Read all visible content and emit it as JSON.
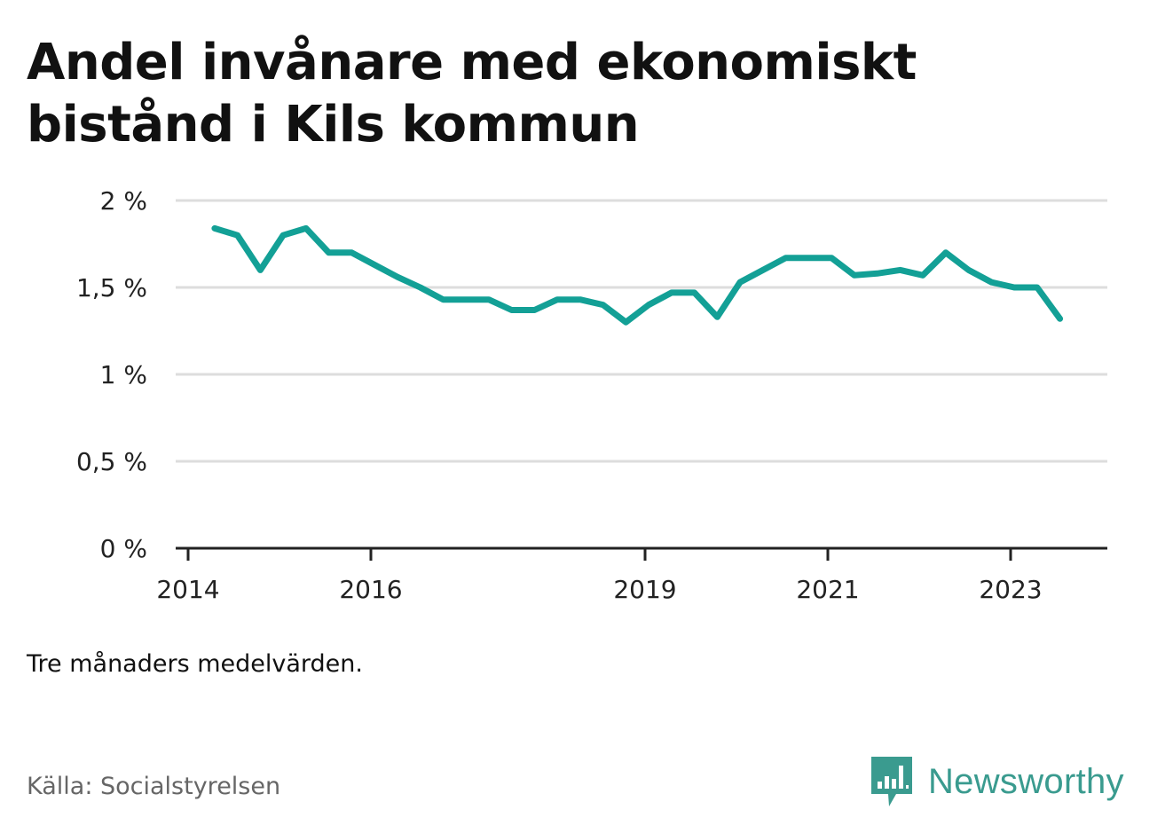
{
  "title_lines": [
    "Andel invånare med ekonomiskt",
    "bistånd i Kils kommun"
  ],
  "note": "Tre månaders medelvärden.",
  "source": "Källa: Socialstyrelsen",
  "brand": {
    "name": "Newsworthy",
    "icon": "newsworthy-logo-icon",
    "color": "#3a9b8f"
  },
  "colors": {
    "line": "#13a096",
    "grid": "#dddddd",
    "axis": "#222222"
  },
  "chart_data": {
    "type": "line",
    "title": "Andel invånare med ekonomiskt bistånd i Kils kommun",
    "xlabel": "",
    "ylabel": "",
    "ylim": [
      0,
      2
    ],
    "yticks": [
      0,
      0.5,
      1,
      1.5,
      2
    ],
    "ytick_labels": [
      "0 %",
      "0,5 %",
      "1 %",
      "1,5 %",
      "2 %"
    ],
    "xticks": [
      2014,
      2016,
      2019,
      2021,
      2023
    ],
    "xtick_labels": [
      "2014",
      "2016",
      "2019",
      "2021",
      "2023"
    ],
    "grid": true,
    "legend": "none",
    "series": [
      {
        "x": [
          2014.29,
          2014.54,
          2014.79,
          2015.04,
          2015.29,
          2015.54,
          2015.79,
          2016.04,
          2016.29,
          2016.54,
          2016.79,
          2017.04,
          2017.29,
          2017.54,
          2017.79,
          2018.04,
          2018.29,
          2018.54,
          2018.79,
          2019.04,
          2019.29,
          2019.54,
          2019.79,
          2020.04,
          2020.29,
          2020.54,
          2020.79,
          2021.04,
          2021.29,
          2021.54,
          2021.79,
          2022.04,
          2022.29,
          2022.54,
          2022.79,
          2023.04,
          2023.29,
          2023.54
        ],
        "values": [
          1.84,
          1.8,
          1.6,
          1.8,
          1.84,
          1.7,
          1.7,
          1.63,
          1.56,
          1.5,
          1.43,
          1.43,
          1.43,
          1.37,
          1.37,
          1.43,
          1.43,
          1.4,
          1.3,
          1.4,
          1.47,
          1.47,
          1.33,
          1.53,
          1.6,
          1.67,
          1.67,
          1.67,
          1.57,
          1.58,
          1.6,
          1.57,
          1.7,
          1.6,
          1.53,
          1.5,
          1.5,
          1.32
        ]
      }
    ]
  }
}
